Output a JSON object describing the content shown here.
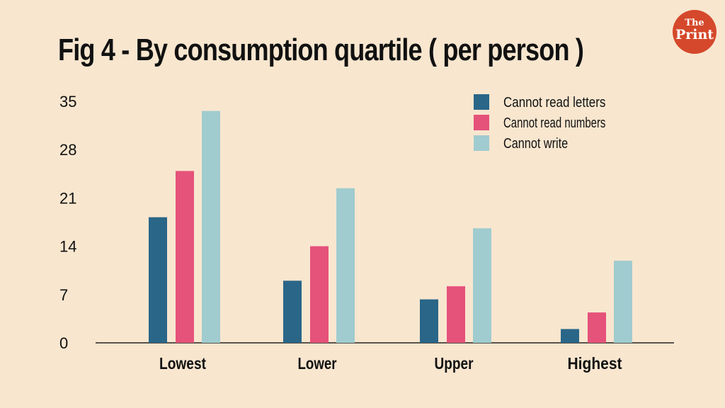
{
  "logo": {
    "line1": "The",
    "line2": "Print"
  },
  "chart_data": {
    "type": "bar",
    "title": "Fig 4 - By consumption quartile ( per person )",
    "xlabel": "",
    "ylabel": "",
    "categories": [
      "Lowest",
      "Lower",
      "Upper",
      "Highest"
    ],
    "series": [
      {
        "name": "Cannot read letters",
        "color": "#2a6688",
        "values": [
          18.2,
          9.0,
          6.3,
          2.0
        ]
      },
      {
        "name": "Cannot read numbers",
        "color": "#e5527a",
        "values": [
          24.9,
          14.0,
          8.2,
          4.4
        ]
      },
      {
        "name": "Cannot write",
        "color": "#a0cccf",
        "values": [
          33.6,
          22.4,
          16.6,
          11.9
        ]
      }
    ],
    "yticks": [
      0,
      7,
      14,
      21,
      28,
      35
    ],
    "ylim": [
      0,
      35
    ],
    "grid": false,
    "legend": "top-right"
  }
}
